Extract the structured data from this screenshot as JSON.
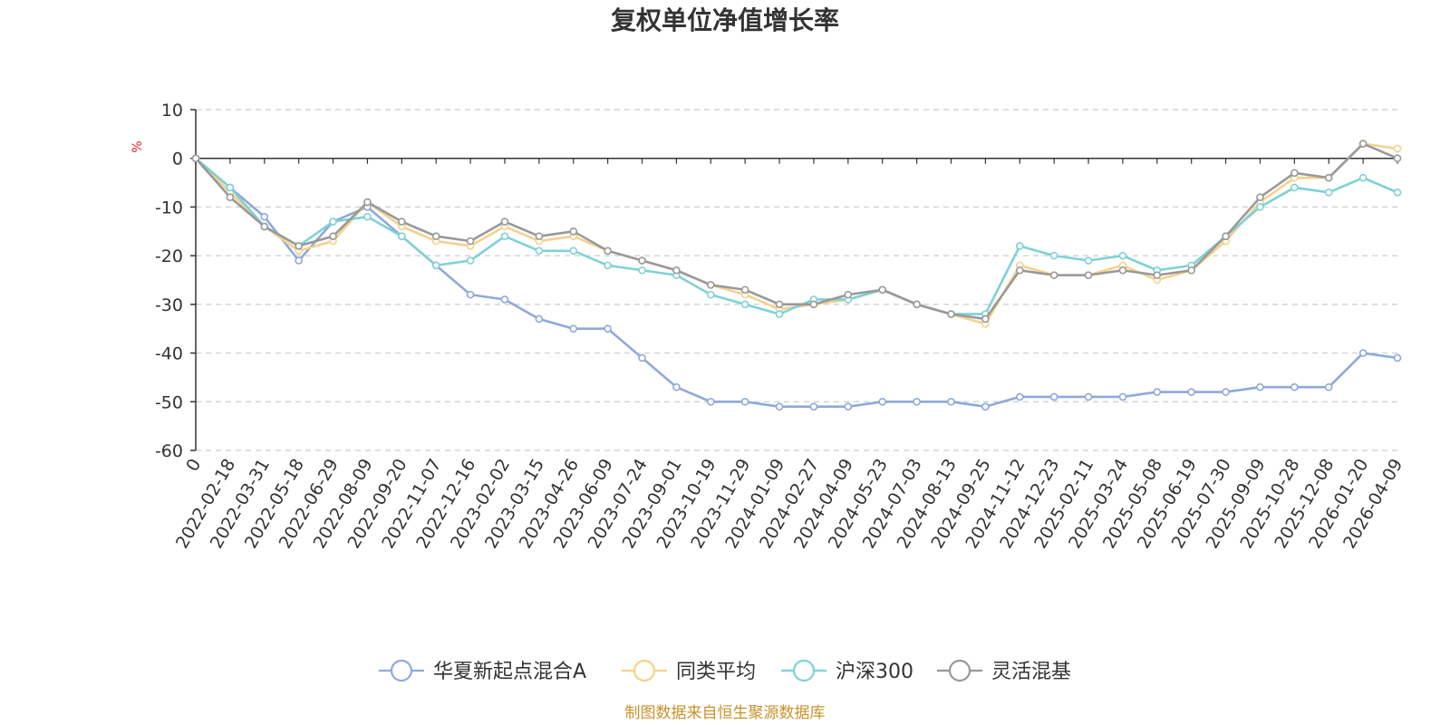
{
  "chart_data": {
    "type": "line",
    "title": "复权单位净值增长率",
    "ylabel": "%",
    "ylim": [
      -60,
      10
    ],
    "yticks": [
      10,
      0,
      -10,
      -20,
      -30,
      -40,
      -50,
      -60
    ],
    "xlabel": "",
    "categories": [
      "0",
      "2022-02-18",
      "2022-03-31",
      "2022-05-18",
      "2022-06-29",
      "2022-08-09",
      "2022-09-20",
      "2022-11-07",
      "2022-12-16",
      "2023-02-02",
      "2023-03-15",
      "2023-04-26",
      "2023-06-09",
      "2023-07-24",
      "2023-09-01",
      "2023-10-19",
      "2023-11-29",
      "2024-01-09",
      "2024-02-27",
      "2024-04-09",
      "2024-05-23",
      "2024-07-03",
      "2024-08-13",
      "2024-09-25",
      "2024-11-12",
      "2024-12-23",
      "2025-02-11",
      "2025-03-24",
      "2025-05-08",
      "2025-06-19",
      "2025-07-30",
      "2025-09-09",
      "2025-10-28",
      "2025-12-08",
      "2026-01-20",
      "2026-04-09"
    ],
    "series": [
      {
        "name": "华夏新起点混合A",
        "color": "#8EA9DB",
        "values": [
          0,
          -6,
          -12,
          -21,
          -13,
          -10,
          -16,
          -22,
          -28,
          -29,
          -33,
          -35,
          -35,
          -41,
          -47,
          -50,
          -50,
          -51,
          -51,
          -51,
          -50,
          -50,
          -50,
          -51,
          -49,
          -49,
          -49,
          -49,
          -48,
          -48,
          -48,
          -47,
          -47,
          -47,
          -40,
          -41
        ]
      },
      {
        "name": "同类平均",
        "color": "#F4D28C",
        "values": [
          0,
          -7,
          -14,
          -19,
          -17,
          -9,
          -14,
          -17,
          -18,
          -14,
          -17,
          -16,
          -19,
          -21,
          -23,
          -26,
          -28,
          -31,
          -30,
          -29,
          -27,
          -30,
          -32,
          -34,
          -22,
          -24,
          -24,
          -22,
          -25,
          -23,
          -17,
          -9,
          -4,
          -4,
          3,
          2
        ]
      },
      {
        "name": "沪深300",
        "color": "#7FD1D6",
        "values": [
          0,
          -6,
          -14,
          -18,
          -13,
          -12,
          -16,
          -22,
          -21,
          -16,
          -19,
          -19,
          -22,
          -23,
          -24,
          -28,
          -30,
          -32,
          -29,
          -29,
          -27,
          -30,
          -32,
          -32,
          -18,
          -20,
          -21,
          -20,
          -23,
          -22,
          -16,
          -10,
          -6,
          -7,
          -4,
          -7
        ]
      },
      {
        "name": "灵活混基",
        "color": "#999999",
        "values": [
          0,
          -8,
          -14,
          -18,
          -16,
          -9,
          -13,
          -16,
          -17,
          -13,
          -16,
          -15,
          -19,
          -21,
          -23,
          -26,
          -27,
          -30,
          -30,
          -28,
          -27,
          -30,
          -32,
          -33,
          -23,
          -24,
          -24,
          -23,
          -24,
          -23,
          -16,
          -8,
          -3,
          -4,
          3,
          0
        ]
      }
    ],
    "legend_position": "bottom-center",
    "grid": "horizontal-dashed"
  },
  "source_note": "制图数据来自恒生聚源数据库",
  "colors": {
    "axis": "#333333",
    "grid": "#cccccc",
    "unit": "#e02020",
    "source": "#c8922a"
  }
}
